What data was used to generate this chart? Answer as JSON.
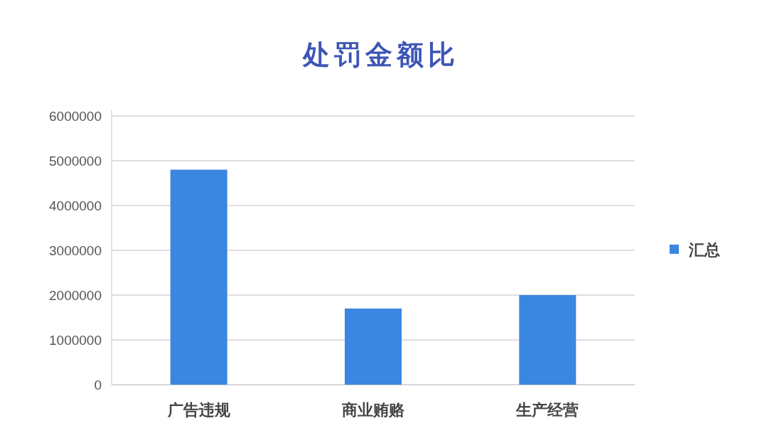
{
  "chart_data": {
    "type": "bar",
    "title": "处罚金额比",
    "categories": [
      "广告违规",
      "商业贿赂",
      "生产经营"
    ],
    "series": [
      {
        "name": "汇总",
        "color": "#3a86e0",
        "values": [
          4800000,
          1700000,
          2000000
        ]
      }
    ],
    "ylim": [
      0,
      6000000
    ],
    "yticks": [
      0,
      1000000,
      2000000,
      3000000,
      4000000,
      5000000,
      6000000
    ],
    "grid": "y",
    "legend": "right"
  }
}
